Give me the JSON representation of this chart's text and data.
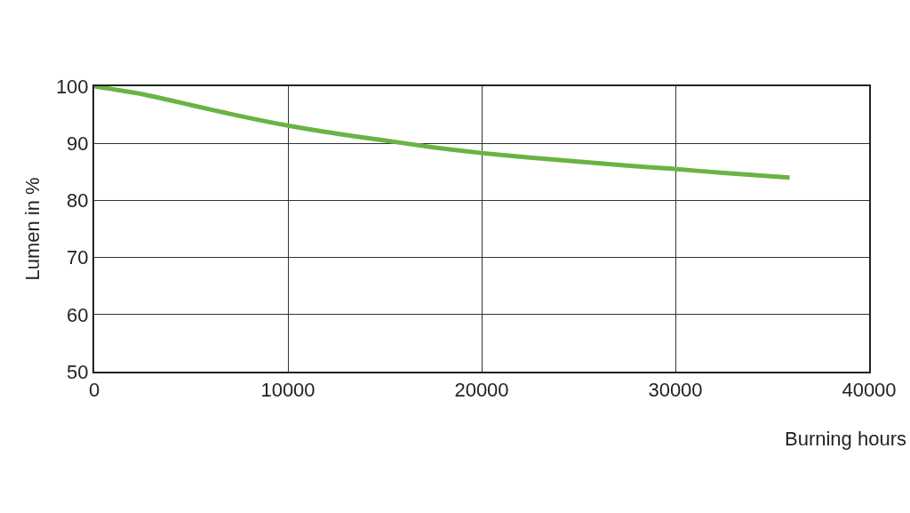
{
  "chart_data": {
    "type": "line",
    "xlabel": "Burning hours",
    "ylabel": "Lumen in %",
    "series": [
      {
        "color": "#6ab344",
        "x": [
          0,
          2500,
          5000,
          7500,
          10000,
          12500,
          15000,
          17500,
          20000,
          22500,
          25000,
          27500,
          30000,
          32500,
          35900
        ],
        "values": [
          100,
          98.6,
          96.7,
          94.8,
          93.1,
          91.7,
          90.5,
          89.3,
          88.3,
          87.5,
          86.8,
          86.1,
          85.5,
          84.8,
          84.0
        ]
      }
    ],
    "xlim": [
      0,
      40000
    ],
    "xticks": [
      0,
      10000,
      20000,
      30000,
      40000
    ],
    "ylim": [
      50,
      100
    ],
    "yticks": [
      50,
      60,
      70,
      80,
      90,
      100
    ],
    "grid": true,
    "marker": "none",
    "line_style": "solid",
    "legend": false
  }
}
